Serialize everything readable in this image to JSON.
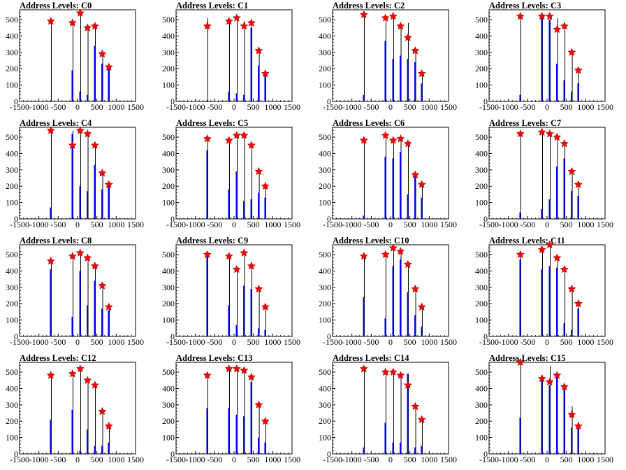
{
  "chart_data": {
    "type": "bar",
    "layout": "4x4 grid of small-multiple histograms with star markers at peak values",
    "xlim": [
      -1500,
      1500
    ],
    "ylim": [
      0,
      560
    ],
    "x_ticks": [
      -1500,
      -1000,
      -500,
      0,
      500,
      1000,
      1500
    ],
    "x_tick_labels": [
      "-1500",
      "-1000",
      "-500",
      "0",
      "500",
      "1000",
      "1500"
    ],
    "y_ticks": [
      0,
      100,
      200,
      300,
      400,
      500
    ],
    "xlabel": "",
    "ylabel": "",
    "grid": false,
    "legend": "none",
    "colors": {
      "bars": "#0000ff",
      "outline": "#000000",
      "marker": "#ff0000"
    },
    "marker_shape": "red star",
    "peak_x": [
      -700,
      -140,
      60,
      250,
      440,
      630,
      800
    ],
    "panels": [
      {
        "title": "Address Levels: C0",
        "blue": [
          5,
          190,
          60,
          40,
          340,
          230,
          200
        ],
        "black": [
          490,
          490,
          530,
          440,
          460,
          290,
          210
        ],
        "peaks": [
          490,
          480,
          540,
          450,
          460,
          290,
          210
        ]
      },
      {
        "title": "Address Levels: C1",
        "blue": [
          5,
          60,
          50,
          40,
          450,
          220,
          160
        ],
        "black": [
          510,
          490,
          510,
          490,
          480,
          310,
          170
        ],
        "peaks": [
          460,
          490,
          510,
          460,
          480,
          310,
          170
        ]
      },
      {
        "title": "Address Levels: C2",
        "blue": [
          40,
          370,
          260,
          280,
          260,
          240,
          110
        ],
        "black": [
          540,
          520,
          530,
          470,
          480,
          310,
          180
        ],
        "peaks": [
          530,
          510,
          520,
          460,
          390,
          310,
          170
        ]
      },
      {
        "title": "Address Levels: C3",
        "blue": [
          40,
          510,
          500,
          230,
          130,
          60,
          110
        ],
        "black": [
          520,
          520,
          520,
          510,
          470,
          300,
          200
        ],
        "peaks": [
          520,
          520,
          520,
          440,
          460,
          300,
          190
        ]
      },
      {
        "title": "Address Levels: C4",
        "blue": [
          70,
          520,
          200,
          170,
          330,
          180,
          200
        ],
        "black": [
          540,
          540,
          540,
          530,
          460,
          280,
          220
        ],
        "peaks": [
          540,
          450,
          540,
          520,
          450,
          280,
          210
        ]
      },
      {
        "title": "Address Levels: C5",
        "blue": [
          420,
          180,
          290,
          110,
          120,
          160,
          130
        ],
        "black": [
          500,
          490,
          510,
          510,
          450,
          290,
          200
        ],
        "peaks": [
          490,
          480,
          510,
          510,
          450,
          290,
          200
        ]
      },
      {
        "title": "Address Levels: C6",
        "blue": [
          20,
          380,
          370,
          410,
          150,
          280,
          130
        ],
        "black": [
          500,
          520,
          480,
          490,
          470,
          270,
          210
        ],
        "peaks": [
          480,
          510,
          480,
          490,
          460,
          270,
          210
        ]
      },
      {
        "title": "Address Levels: C7",
        "blue": [
          40,
          60,
          120,
          320,
          370,
          170,
          140
        ],
        "black": [
          520,
          530,
          520,
          500,
          460,
          290,
          210
        ],
        "peaks": [
          520,
          530,
          520,
          500,
          460,
          290,
          210
        ]
      },
      {
        "title": "Address Levels: C8",
        "blue": [
          410,
          120,
          400,
          190,
          340,
          170,
          160
        ],
        "black": [
          470,
          490,
          510,
          480,
          430,
          310,
          190
        ],
        "peaks": [
          460,
          490,
          510,
          480,
          430,
          310,
          180
        ]
      },
      {
        "title": "Address Levels: C9",
        "blue": [
          490,
          190,
          70,
          310,
          290,
          50,
          40
        ],
        "black": [
          510,
          500,
          420,
          510,
          430,
          300,
          180
        ],
        "peaks": [
          500,
          490,
          410,
          510,
          430,
          290,
          180
        ]
      },
      {
        "title": "Address Levels: C10",
        "blue": [
          240,
          110,
          430,
          470,
          270,
          130,
          60
        ],
        "black": [
          490,
          510,
          530,
          520,
          440,
          290,
          190
        ],
        "peaks": [
          490,
          500,
          540,
          520,
          440,
          290,
          180
        ]
      },
      {
        "title": "Address Levels: C11",
        "blue": [
          470,
          410,
          430,
          420,
          80,
          40,
          170
        ],
        "black": [
          500,
          540,
          560,
          490,
          420,
          290,
          210
        ],
        "peaks": [
          500,
          530,
          560,
          480,
          410,
          290,
          200
        ]
      },
      {
        "title": "Address Levels: C12",
        "blue": [
          210,
          270,
          20,
          150,
          50,
          50,
          70
        ],
        "black": [
          490,
          500,
          530,
          460,
          430,
          270,
          180
        ],
        "peaks": [
          480,
          490,
          520,
          450,
          420,
          260,
          170
        ]
      },
      {
        "title": "Address Levels: C13",
        "blue": [
          280,
          280,
          240,
          230,
          440,
          100,
          70
        ],
        "black": [
          490,
          530,
          530,
          510,
          470,
          300,
          210
        ],
        "peaks": [
          480,
          520,
          520,
          510,
          470,
          300,
          200
        ]
      },
      {
        "title": "Address Levels: C14",
        "blue": [
          40,
          190,
          70,
          70,
          490,
          40,
          50
        ],
        "black": [
          520,
          500,
          500,
          490,
          490,
          300,
          210
        ],
        "peaks": [
          520,
          500,
          500,
          480,
          420,
          290,
          210
        ]
      },
      {
        "title": "Address Levels: C15",
        "blue": [
          220,
          450,
          420,
          480,
          410,
          160,
          160
        ],
        "black": [
          570,
          480,
          540,
          490,
          420,
          290,
          190
        ],
        "peaks": [
          560,
          460,
          440,
          480,
          410,
          240,
          170
        ]
      }
    ]
  }
}
